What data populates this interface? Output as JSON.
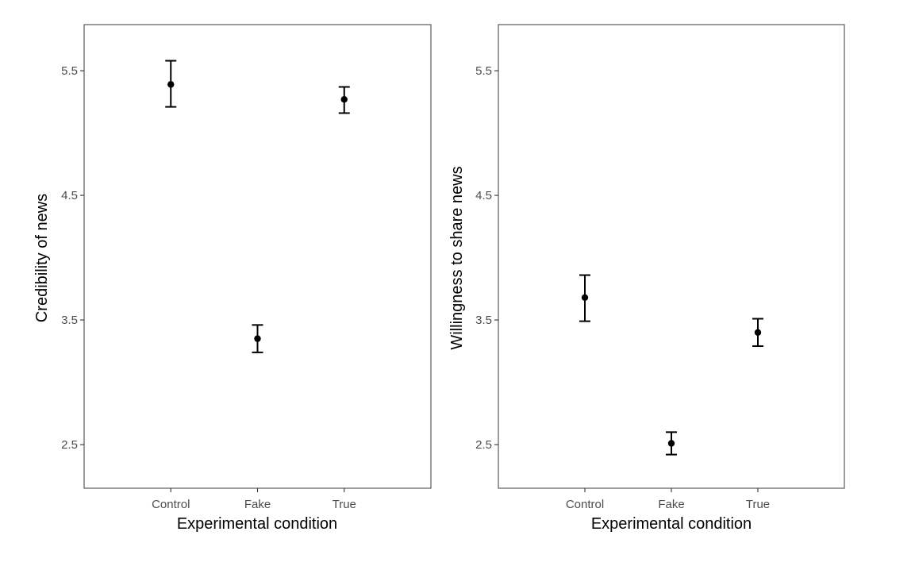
{
  "chart_data": [
    {
      "type": "scatter",
      "subtype": "point-with-error-bars",
      "categories": [
        "Control",
        "Fake",
        "True"
      ],
      "values": [
        5.39,
        3.35,
        5.27
      ],
      "error_low": [
        5.21,
        3.24,
        5.16
      ],
      "error_high": [
        5.58,
        3.46,
        5.37
      ],
      "xlabel": "Experimental condition",
      "ylabel": "Credibility of news",
      "yticks": [
        2.5,
        3.5,
        4.5,
        5.5
      ],
      "ytick_labels": [
        "2.5",
        "3.5",
        "4.5",
        "5.5"
      ],
      "ylim": [
        2.15,
        5.87
      ],
      "grid": false,
      "legend": "none"
    },
    {
      "type": "scatter",
      "subtype": "point-with-error-bars",
      "categories": [
        "Control",
        "Fake",
        "True"
      ],
      "values": [
        3.68,
        2.51,
        3.4
      ],
      "error_low": [
        3.49,
        2.42,
        3.29
      ],
      "error_high": [
        3.86,
        2.6,
        3.51
      ],
      "xlabel": "Experimental condition",
      "ylabel": "Willingness to share news",
      "yticks": [
        2.5,
        3.5,
        4.5,
        5.5
      ],
      "ytick_labels": [
        "2.5",
        "3.5",
        "4.5",
        "5.5"
      ],
      "ylim": [
        2.15,
        5.87
      ],
      "grid": false,
      "legend": "none"
    }
  ],
  "colors": {
    "points": "#000000",
    "panel_border": "#595959",
    "tick_text": "#4d4d4d"
  }
}
